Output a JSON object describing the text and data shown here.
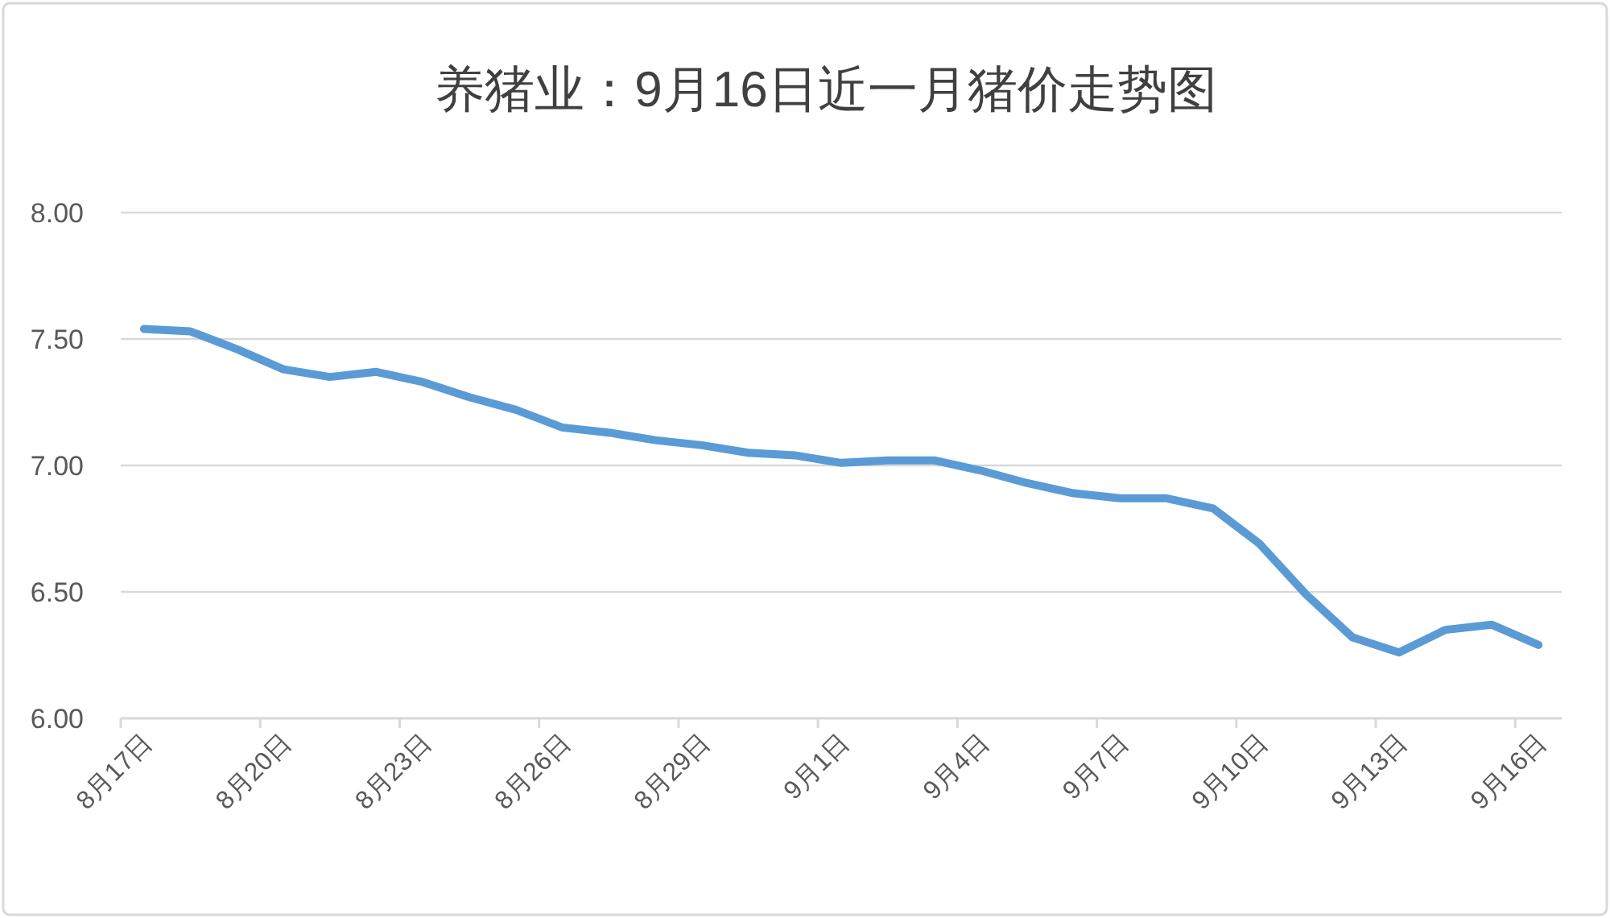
{
  "chart_data": {
    "type": "line",
    "title": "养猪业：9月16日近一月猪价走势图",
    "categories": [
      "8月17日",
      null,
      null,
      "8月20日",
      null,
      null,
      "8月23日",
      null,
      null,
      "8月26日",
      null,
      null,
      "8月29日",
      null,
      null,
      "9月1日",
      null,
      null,
      "9月4日",
      null,
      null,
      "9月7日",
      null,
      null,
      "9月10日",
      null,
      null,
      "9月13日",
      null,
      null,
      "9月16日"
    ],
    "values": [
      7.54,
      7.53,
      7.46,
      7.38,
      7.35,
      7.37,
      7.33,
      7.27,
      7.22,
      7.15,
      7.13,
      7.1,
      7.08,
      7.05,
      7.04,
      7.01,
      7.02,
      7.02,
      6.98,
      6.93,
      6.89,
      6.87,
      6.87,
      6.83,
      6.69,
      6.49,
      6.32,
      6.26,
      6.35,
      6.37,
      6.29
    ],
    "color": "#5b9bd5",
    "ylim": [
      6,
      8
    ],
    "yticks": [
      {
        "value": 6,
        "label": "6.00"
      },
      {
        "value": 6.5,
        "label": "6.50"
      },
      {
        "value": 7,
        "label": "7.00"
      },
      {
        "value": 7.5,
        "label": "7.50"
      },
      {
        "value": 8,
        "label": "8.00"
      }
    ],
    "grid": "y"
  }
}
